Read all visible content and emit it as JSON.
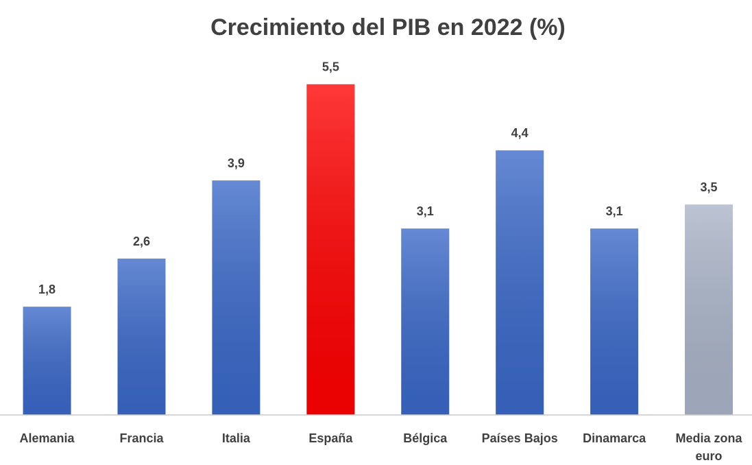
{
  "chart_data": {
    "type": "bar",
    "title": "Crecimiento del PIB en 2022 (%)",
    "categories": [
      "Alemania",
      "Francia",
      "Italia",
      "España",
      "Bélgica",
      "Países Bajos",
      "Dinamarca",
      "Media zona euro"
    ],
    "values": [
      1.8,
      2.6,
      3.9,
      5.5,
      3.1,
      4.4,
      3.1,
      3.5
    ],
    "value_labels": [
      "1,8",
      "2,6",
      "3,9",
      "5,5",
      "3,1",
      "4,4",
      "3,1",
      "3,5"
    ],
    "colors": [
      "#3a68c8",
      "#3a68c8",
      "#3a68c8",
      "#ff0000",
      "#3a68c8",
      "#3a68c8",
      "#3a68c8",
      "#aab4c8"
    ],
    "ylim": [
      0,
      6
    ]
  }
}
